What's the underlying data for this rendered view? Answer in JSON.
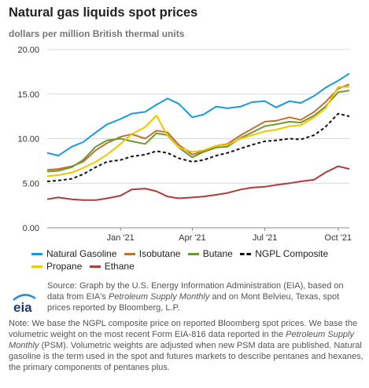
{
  "header": {
    "title": "Natural gas liquids spot prices",
    "subtitle": "dollars per million British thermal units"
  },
  "chart_data": {
    "type": "line",
    "ylim": [
      0,
      20
    ],
    "yticks": [
      "0.00",
      "5.00",
      "10.00",
      "15.00",
      "20.00"
    ],
    "x_range": [
      "2020-10-01",
      "2021-10-15"
    ],
    "xticks": [
      {
        "label": "Jan '21",
        "date": "2021-01-01"
      },
      {
        "label": "Apr '21",
        "date": "2021-04-01"
      },
      {
        "label": "Jul '21",
        "date": "2021-07-01"
      },
      {
        "label": "Oct '21",
        "date": "2021-10-01"
      }
    ],
    "grid": "horizontal",
    "legend_position": "bottom",
    "series": [
      {
        "name": "Natural Gasoline",
        "color": "#1a9ad6",
        "dash": "solid",
        "points": [
          [
            "2020-10-01",
            8.4
          ],
          [
            "2020-10-15",
            8.1
          ],
          [
            "2020-11-01",
            9.1
          ],
          [
            "2020-11-15",
            9.6
          ],
          [
            "2020-12-01",
            10.7
          ],
          [
            "2020-12-15",
            11.6
          ],
          [
            "2021-01-01",
            12.2
          ],
          [
            "2021-01-15",
            12.8
          ],
          [
            "2021-02-01",
            13.0
          ],
          [
            "2021-02-15",
            13.8
          ],
          [
            "2021-03-01",
            14.5
          ],
          [
            "2021-03-15",
            13.9
          ],
          [
            "2021-04-01",
            12.4
          ],
          [
            "2021-04-15",
            12.7
          ],
          [
            "2021-05-01",
            13.6
          ],
          [
            "2021-05-15",
            13.4
          ],
          [
            "2021-06-01",
            13.6
          ],
          [
            "2021-06-15",
            14.1
          ],
          [
            "2021-07-01",
            14.2
          ],
          [
            "2021-07-15",
            13.5
          ],
          [
            "2021-08-01",
            14.2
          ],
          [
            "2021-08-15",
            14.0
          ],
          [
            "2021-09-01",
            14.8
          ],
          [
            "2021-09-15",
            15.7
          ],
          [
            "2021-10-01",
            16.5
          ],
          [
            "2021-10-15",
            17.3
          ]
        ]
      },
      {
        "name": "Isobutane",
        "color": "#c0712f",
        "dash": "solid",
        "points": [
          [
            "2020-10-01",
            6.5
          ],
          [
            "2020-10-15",
            6.6
          ],
          [
            "2020-11-01",
            6.9
          ],
          [
            "2020-11-15",
            7.4
          ],
          [
            "2020-12-01",
            8.7
          ],
          [
            "2020-12-15",
            9.5
          ],
          [
            "2021-01-01",
            10.2
          ],
          [
            "2021-01-15",
            10.5
          ],
          [
            "2021-02-01",
            10.0
          ],
          [
            "2021-02-15",
            10.9
          ],
          [
            "2021-03-01",
            10.7
          ],
          [
            "2021-03-15",
            9.3
          ],
          [
            "2021-04-01",
            8.2
          ],
          [
            "2021-04-15",
            8.6
          ],
          [
            "2021-05-01",
            9.2
          ],
          [
            "2021-05-15",
            9.4
          ],
          [
            "2021-06-01",
            10.4
          ],
          [
            "2021-06-15",
            11.1
          ],
          [
            "2021-07-01",
            11.9
          ],
          [
            "2021-07-15",
            12.0
          ],
          [
            "2021-08-01",
            12.4
          ],
          [
            "2021-08-15",
            12.1
          ],
          [
            "2021-09-01",
            13.0
          ],
          [
            "2021-09-15",
            14.1
          ],
          [
            "2021-10-01",
            15.6
          ],
          [
            "2021-10-15",
            16.1
          ]
        ]
      },
      {
        "name": "Butane",
        "color": "#6a9a2c",
        "dash": "solid",
        "points": [
          [
            "2020-10-01",
            6.3
          ],
          [
            "2020-10-15",
            6.4
          ],
          [
            "2020-11-01",
            6.8
          ],
          [
            "2020-11-15",
            7.6
          ],
          [
            "2020-12-01",
            9.1
          ],
          [
            "2020-12-15",
            9.8
          ],
          [
            "2021-01-01",
            10.0
          ],
          [
            "2021-01-15",
            9.7
          ],
          [
            "2021-02-01",
            9.4
          ],
          [
            "2021-02-15",
            10.6
          ],
          [
            "2021-03-01",
            10.4
          ],
          [
            "2021-03-15",
            9.0
          ],
          [
            "2021-04-01",
            7.9
          ],
          [
            "2021-04-15",
            8.5
          ],
          [
            "2021-05-01",
            9.0
          ],
          [
            "2021-05-15",
            9.1
          ],
          [
            "2021-06-01",
            10.1
          ],
          [
            "2021-06-15",
            10.7
          ],
          [
            "2021-07-01",
            11.4
          ],
          [
            "2021-07-15",
            11.6
          ],
          [
            "2021-08-01",
            11.9
          ],
          [
            "2021-08-15",
            11.8
          ],
          [
            "2021-09-01",
            12.6
          ],
          [
            "2021-09-15",
            13.6
          ],
          [
            "2021-10-01",
            15.2
          ],
          [
            "2021-10-15",
            15.4
          ]
        ]
      },
      {
        "name": "NGPL Composite",
        "color": "#111111",
        "dash": "dashed",
        "points": [
          [
            "2020-10-01",
            5.2
          ],
          [
            "2020-10-15",
            5.3
          ],
          [
            "2020-11-01",
            5.5
          ],
          [
            "2020-11-15",
            6.0
          ],
          [
            "2020-12-01",
            6.8
          ],
          [
            "2020-12-15",
            7.4
          ],
          [
            "2021-01-01",
            7.6
          ],
          [
            "2021-01-15",
            8.0
          ],
          [
            "2021-02-01",
            8.2
          ],
          [
            "2021-02-15",
            8.6
          ],
          [
            "2021-03-01",
            8.4
          ],
          [
            "2021-03-15",
            7.8
          ],
          [
            "2021-04-01",
            7.4
          ],
          [
            "2021-04-15",
            7.6
          ],
          [
            "2021-05-01",
            8.1
          ],
          [
            "2021-05-15",
            8.4
          ],
          [
            "2021-06-01",
            8.9
          ],
          [
            "2021-06-15",
            9.3
          ],
          [
            "2021-07-01",
            9.7
          ],
          [
            "2021-07-15",
            9.8
          ],
          [
            "2021-08-01",
            10.0
          ],
          [
            "2021-08-15",
            9.9
          ],
          [
            "2021-09-01",
            10.4
          ],
          [
            "2021-09-15",
            11.3
          ],
          [
            "2021-10-01",
            12.8
          ],
          [
            "2021-10-15",
            12.5
          ]
        ]
      },
      {
        "name": "Propane",
        "color": "#f5c400",
        "dash": "solid",
        "points": [
          [
            "2020-10-01",
            5.8
          ],
          [
            "2020-10-15",
            5.9
          ],
          [
            "2020-11-01",
            6.2
          ],
          [
            "2020-11-15",
            6.7
          ],
          [
            "2020-12-01",
            7.4
          ],
          [
            "2020-12-15",
            8.2
          ],
          [
            "2021-01-01",
            9.4
          ],
          [
            "2021-01-15",
            10.5
          ],
          [
            "2021-02-01",
            11.3
          ],
          [
            "2021-02-15",
            12.6
          ],
          [
            "2021-03-01",
            10.3
          ],
          [
            "2021-03-15",
            9.0
          ],
          [
            "2021-04-01",
            8.5
          ],
          [
            "2021-04-15",
            8.7
          ],
          [
            "2021-05-01",
            9.2
          ],
          [
            "2021-05-15",
            9.3
          ],
          [
            "2021-06-01",
            10.0
          ],
          [
            "2021-06-15",
            10.4
          ],
          [
            "2021-07-01",
            10.8
          ],
          [
            "2021-07-15",
            11.0
          ],
          [
            "2021-08-01",
            11.4
          ],
          [
            "2021-08-15",
            11.5
          ],
          [
            "2021-09-01",
            12.4
          ],
          [
            "2021-09-15",
            13.4
          ],
          [
            "2021-10-01",
            15.8
          ],
          [
            "2021-10-15",
            15.8
          ]
        ]
      },
      {
        "name": "Ethane",
        "color": "#b03a3a",
        "dash": "solid",
        "points": [
          [
            "2020-10-01",
            3.2
          ],
          [
            "2020-10-15",
            3.4
          ],
          [
            "2020-11-01",
            3.2
          ],
          [
            "2020-11-15",
            3.1
          ],
          [
            "2020-12-01",
            3.1
          ],
          [
            "2020-12-15",
            3.3
          ],
          [
            "2021-01-01",
            3.6
          ],
          [
            "2021-01-15",
            4.3
          ],
          [
            "2021-02-01",
            4.4
          ],
          [
            "2021-02-15",
            4.1
          ],
          [
            "2021-03-01",
            3.5
          ],
          [
            "2021-03-15",
            3.3
          ],
          [
            "2021-04-01",
            3.4
          ],
          [
            "2021-04-15",
            3.5
          ],
          [
            "2021-05-01",
            3.7
          ],
          [
            "2021-05-15",
            3.9
          ],
          [
            "2021-06-01",
            4.3
          ],
          [
            "2021-06-15",
            4.5
          ],
          [
            "2021-07-01",
            4.6
          ],
          [
            "2021-07-15",
            4.8
          ],
          [
            "2021-08-01",
            5.0
          ],
          [
            "2021-08-15",
            5.2
          ],
          [
            "2021-09-01",
            5.4
          ],
          [
            "2021-09-15",
            6.2
          ],
          [
            "2021-10-01",
            6.9
          ],
          [
            "2021-10-15",
            6.6
          ]
        ]
      }
    ]
  },
  "source": {
    "pre": "Source: Graph by the U.S. Energy Information Administration (EIA), based on data from EIA's ",
    "pub": "Petroleum Supply Monthly",
    "post": " and on Mont Belvieu, Texas, spot prices reported by Bloomberg, L.P."
  },
  "logo_text": "eia",
  "note": {
    "part1": "Note: We base the NGPL composite price on reported Bloomberg spot prices. We base the volumetric weight on the most recent Form EIA-816 data reported in the ",
    "pub": "Petroleum Supply Monthly",
    "part2": " (PSM). Volumetric weights are adjusted when new PSM data are published. Natural gasoline is the term used in the spot and futures markets to describe pentanes and hexanes, the primary components of pentanes plus."
  }
}
